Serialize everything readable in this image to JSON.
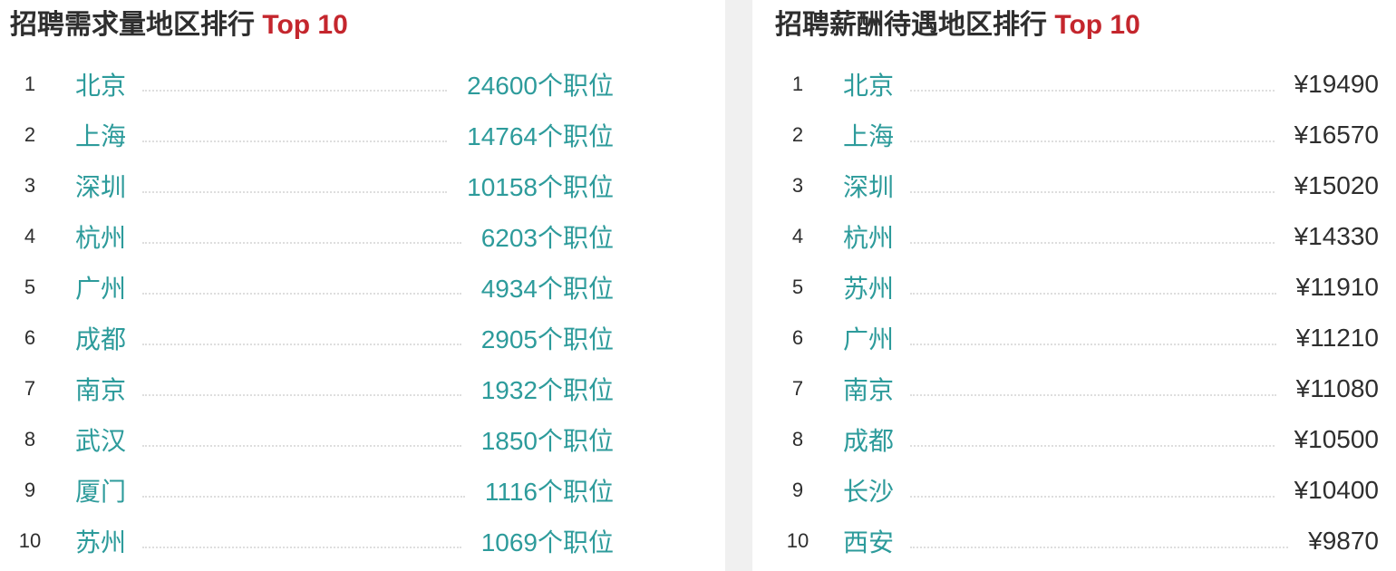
{
  "colors": {
    "accent": "#2d9b9b",
    "highlight": "#c4262d",
    "text": "#2e2e2e",
    "dots": "#dedede",
    "divider": "#f0f0f0"
  },
  "panels": [
    {
      "title": "招聘需求量地区排行",
      "title_highlight": "Top 10",
      "value_style": "accent",
      "rows": [
        {
          "rank": "1",
          "city": "北京",
          "value": "24600个职位"
        },
        {
          "rank": "2",
          "city": "上海",
          "value": "14764个职位"
        },
        {
          "rank": "3",
          "city": "深圳",
          "value": "10158个职位"
        },
        {
          "rank": "4",
          "city": "杭州",
          "value": "6203个职位"
        },
        {
          "rank": "5",
          "city": "广州",
          "value": "4934个职位"
        },
        {
          "rank": "6",
          "city": "成都",
          "value": "2905个职位"
        },
        {
          "rank": "7",
          "city": "南京",
          "value": "1932个职位"
        },
        {
          "rank": "8",
          "city": "武汉",
          "value": "1850个职位"
        },
        {
          "rank": "9",
          "city": "厦门",
          "value": "1116个职位"
        },
        {
          "rank": "10",
          "city": "苏州",
          "value": "1069个职位"
        }
      ]
    },
    {
      "title": "招聘薪酬待遇地区排行",
      "title_highlight": "Top 10",
      "value_style": "dark",
      "rows": [
        {
          "rank": "1",
          "city": "北京",
          "value": "¥19490"
        },
        {
          "rank": "2",
          "city": "上海",
          "value": "¥16570"
        },
        {
          "rank": "3",
          "city": "深圳",
          "value": "¥15020"
        },
        {
          "rank": "4",
          "city": "杭州",
          "value": "¥14330"
        },
        {
          "rank": "5",
          "city": "苏州",
          "value": "¥11910"
        },
        {
          "rank": "6",
          "city": "广州",
          "value": "¥11210"
        },
        {
          "rank": "7",
          "city": "南京",
          "value": "¥11080"
        },
        {
          "rank": "8",
          "city": "成都",
          "value": "¥10500"
        },
        {
          "rank": "9",
          "city": "长沙",
          "value": "¥10400"
        },
        {
          "rank": "10",
          "city": "西安",
          "value": "¥9870"
        }
      ]
    }
  ],
  "chart_data": [
    {
      "type": "table",
      "title": "招聘需求量地区排行 Top 10",
      "columns": [
        "rank",
        "city",
        "job_count"
      ],
      "categories": [
        "北京",
        "上海",
        "深圳",
        "杭州",
        "广州",
        "成都",
        "南京",
        "武汉",
        "厦门",
        "苏州"
      ],
      "values": [
        24600,
        14764,
        10158,
        6203,
        4934,
        2905,
        1932,
        1850,
        1116,
        1069
      ],
      "value_suffix": "个职位"
    },
    {
      "type": "table",
      "title": "招聘薪酬待遇地区排行 Top 10",
      "columns": [
        "rank",
        "city",
        "salary"
      ],
      "categories": [
        "北京",
        "上海",
        "深圳",
        "杭州",
        "苏州",
        "广州",
        "南京",
        "成都",
        "长沙",
        "西安"
      ],
      "values": [
        19490,
        16570,
        15020,
        14330,
        11910,
        11210,
        11080,
        10500,
        10400,
        9870
      ],
      "value_prefix": "¥"
    }
  ]
}
